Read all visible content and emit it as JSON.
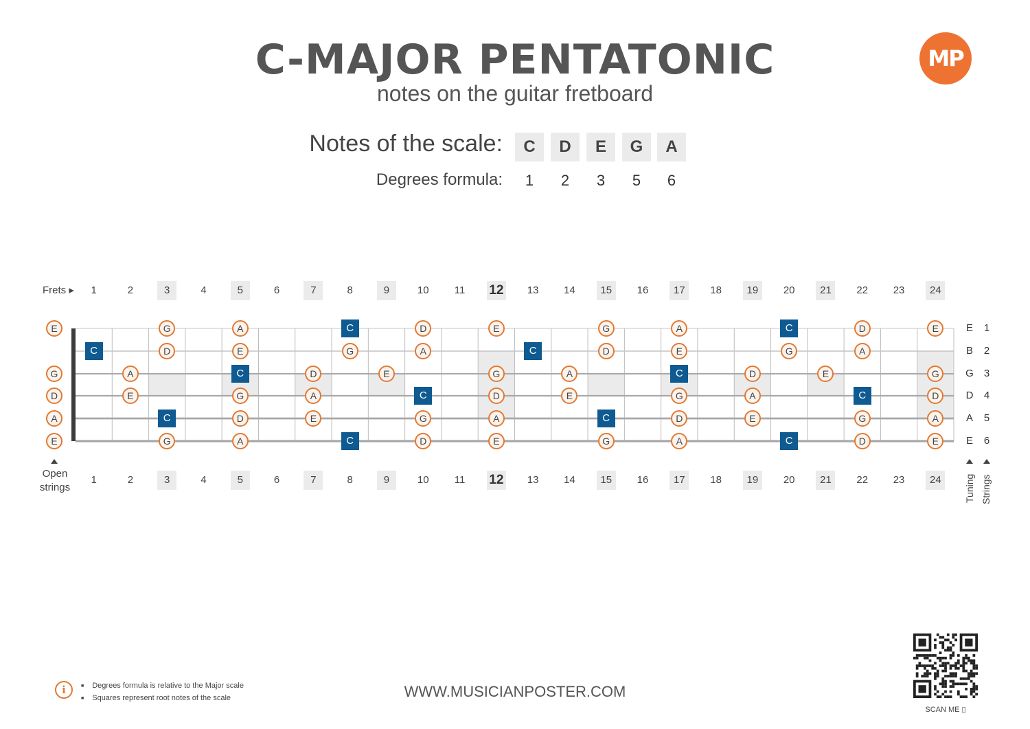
{
  "header": {
    "title": "C-MAJOR PENTATONIC",
    "subtitle": "notes on the guitar fretboard",
    "logo_text": "MP",
    "accent_color": "#ee7332"
  },
  "scale": {
    "notes_label": "Notes of the scale:",
    "degrees_label": "Degrees formula:",
    "notes": [
      "C",
      "D",
      "E",
      "G",
      "A"
    ],
    "degrees": [
      "1",
      "2",
      "3",
      "5",
      "6"
    ]
  },
  "fretboard": {
    "frets_label": "Frets ▸",
    "open_label_line1": "Open",
    "open_label_line2": "strings",
    "fret_numbers": [
      "1",
      "2",
      "3",
      "4",
      "5",
      "6",
      "7",
      "8",
      "9",
      "10",
      "11",
      "12",
      "13",
      "14",
      "15",
      "16",
      "17",
      "18",
      "19",
      "20",
      "21",
      "22",
      "23",
      "24"
    ],
    "marked_frets": [
      3,
      5,
      7,
      9,
      12,
      15,
      17,
      19,
      21,
      24
    ],
    "tuning": [
      "E",
      "B",
      "G",
      "D",
      "A",
      "E"
    ],
    "string_numbers": [
      "1",
      "2",
      "3",
      "4",
      "5",
      "6"
    ],
    "tuning_label": "Tuning",
    "strings_label": "Strings",
    "root_note": "C",
    "root_color": "#0e5a91",
    "note_color": "#e07a35",
    "positions": [
      {
        "string": 1,
        "notes": [
          [
            0,
            "E"
          ],
          [
            3,
            "G"
          ],
          [
            5,
            "A"
          ],
          [
            8,
            "C"
          ],
          [
            10,
            "D"
          ],
          [
            12,
            "E"
          ],
          [
            15,
            "G"
          ],
          [
            17,
            "A"
          ],
          [
            20,
            "C"
          ],
          [
            22,
            "D"
          ],
          [
            24,
            "E"
          ]
        ]
      },
      {
        "string": 2,
        "notes": [
          [
            1,
            "C"
          ],
          [
            3,
            "D"
          ],
          [
            5,
            "E"
          ],
          [
            8,
            "G"
          ],
          [
            10,
            "A"
          ],
          [
            13,
            "C"
          ],
          [
            15,
            "D"
          ],
          [
            17,
            "E"
          ],
          [
            20,
            "G"
          ],
          [
            22,
            "A"
          ]
        ]
      },
      {
        "string": 3,
        "notes": [
          [
            0,
            "G"
          ],
          [
            2,
            "A"
          ],
          [
            5,
            "C"
          ],
          [
            7,
            "D"
          ],
          [
            9,
            "E"
          ],
          [
            12,
            "G"
          ],
          [
            14,
            "A"
          ],
          [
            17,
            "C"
          ],
          [
            19,
            "D"
          ],
          [
            21,
            "E"
          ],
          [
            24,
            "G"
          ]
        ]
      },
      {
        "string": 4,
        "notes": [
          [
            0,
            "D"
          ],
          [
            2,
            "E"
          ],
          [
            5,
            "G"
          ],
          [
            7,
            "A"
          ],
          [
            10,
            "C"
          ],
          [
            12,
            "D"
          ],
          [
            14,
            "E"
          ],
          [
            17,
            "G"
          ],
          [
            19,
            "A"
          ],
          [
            22,
            "C"
          ],
          [
            24,
            "D"
          ]
        ]
      },
      {
        "string": 5,
        "notes": [
          [
            0,
            "A"
          ],
          [
            3,
            "C"
          ],
          [
            5,
            "D"
          ],
          [
            7,
            "E"
          ],
          [
            10,
            "G"
          ],
          [
            12,
            "A"
          ],
          [
            15,
            "C"
          ],
          [
            17,
            "D"
          ],
          [
            19,
            "E"
          ],
          [
            22,
            "G"
          ],
          [
            24,
            "A"
          ]
        ]
      },
      {
        "string": 6,
        "notes": [
          [
            0,
            "E"
          ],
          [
            3,
            "G"
          ],
          [
            5,
            "A"
          ],
          [
            8,
            "C"
          ],
          [
            10,
            "D"
          ],
          [
            12,
            "E"
          ],
          [
            15,
            "G"
          ],
          [
            17,
            "A"
          ],
          [
            20,
            "C"
          ],
          [
            22,
            "D"
          ],
          [
            24,
            "E"
          ]
        ]
      }
    ]
  },
  "footer": {
    "info_lines": [
      "Degrees formula is relative to the Major scale",
      "Squares represent root notes of the scale"
    ],
    "website": "WWW.MUSICIANPOSTER.COM",
    "scan_label": "SCAN ME ▯"
  }
}
